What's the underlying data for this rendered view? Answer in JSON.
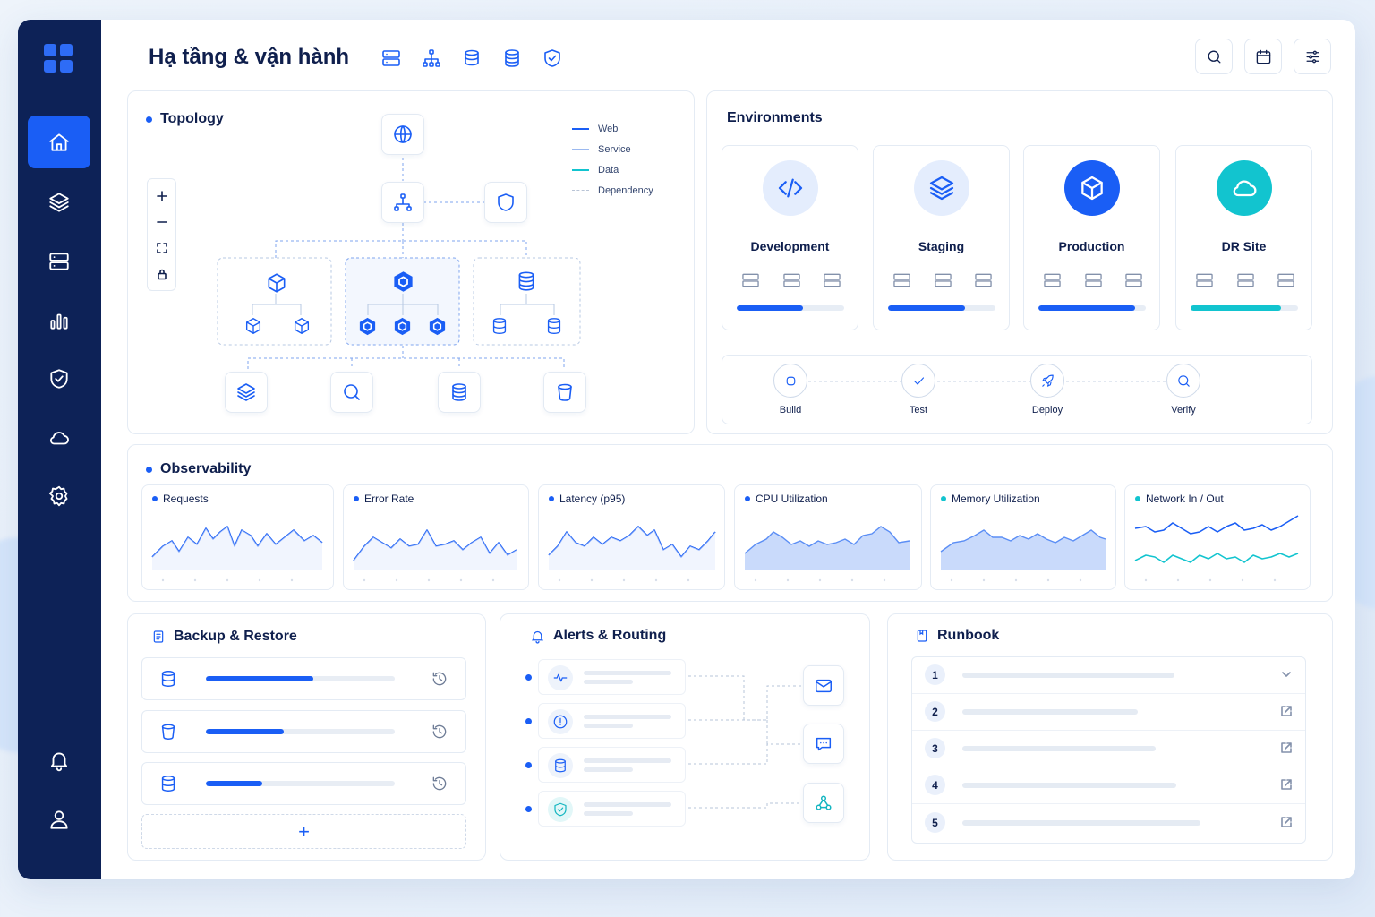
{
  "header": {
    "title": "Hạ tầng & vận hành"
  },
  "topology": {
    "title": "Topology",
    "legend": [
      {
        "label": "Web",
        "color": "#1a5ef5",
        "style": "solid"
      },
      {
        "label": "Service",
        "color": "#9bb9f0",
        "style": "solid"
      },
      {
        "label": "Data",
        "color": "#12c4cf",
        "style": "solid"
      },
      {
        "label": "Dependency",
        "color": "#b9c4d6",
        "style": "dashed"
      }
    ]
  },
  "environments": {
    "title": "Environments",
    "items": [
      {
        "name": "Development",
        "progress": 0.62,
        "icon": "code-icon",
        "color": "#1a5ef5"
      },
      {
        "name": "Staging",
        "progress": 0.72,
        "icon": "layers-icon",
        "color": "#1a5ef5"
      },
      {
        "name": "Production",
        "progress": 0.9,
        "icon": "cube-icon",
        "color": "#1a5ef5"
      },
      {
        "name": "DR Site",
        "progress": 0.84,
        "icon": "cloud-icon",
        "color": "#12c4cf"
      }
    ],
    "pipeline": [
      {
        "label": "Build",
        "icon": "box-icon"
      },
      {
        "label": "Test",
        "icon": "check-icon"
      },
      {
        "label": "Deploy",
        "icon": "rocket-icon"
      },
      {
        "label": "Verify",
        "icon": "search-icon"
      }
    ]
  },
  "observability": {
    "title": "Observability",
    "metrics": [
      {
        "label": "Requests",
        "dot": "#1a5ef5"
      },
      {
        "label": "Error Rate",
        "dot": "#1a5ef5"
      },
      {
        "label": "Latency (p95)",
        "dot": "#1a5ef5"
      },
      {
        "label": "CPU Utilization",
        "dot": "#1a5ef5"
      },
      {
        "label": "Memory Utilization",
        "dot": "#12c4cf"
      },
      {
        "label": "Network In / Out",
        "dot": "#12c4cf"
      }
    ]
  },
  "backup": {
    "title": "Backup & Restore",
    "items": [
      {
        "progress": 0.57
      },
      {
        "progress": 0.41
      },
      {
        "progress": 0.3
      }
    ],
    "add_label": "+"
  },
  "alerts": {
    "title": "Alerts & Routing",
    "destinations": [
      "mail-icon",
      "chat-icon",
      "webhook-icon"
    ]
  },
  "runbook": {
    "title": "Runbook",
    "items": [
      "1",
      "2",
      "3",
      "4",
      "5"
    ]
  }
}
